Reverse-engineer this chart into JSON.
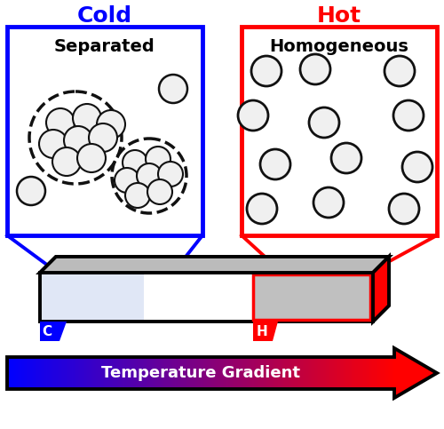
{
  "cold_label": "Cold",
  "hot_label": "Hot",
  "separated_label": "Separated",
  "homogeneous_label": "Homogeneous",
  "gradient_label": "Temperature Gradient",
  "cold_color": "#0000FF",
  "hot_color": "#FF0000",
  "box_bg": "#FFFFFF",
  "fig_bg": "#FFFFFF",
  "c_label": "C",
  "h_label": "H",
  "device_top_color": "#AAAAAA",
  "device_right_color": "#888888",
  "device_front_color": "#FFFFFF",
  "cold_tint_color": "#C8D8F8",
  "hot_region_color": "#C8C8C8",
  "sphere_fc": "#F0F0F0",
  "sphere_ec": "#111111",
  "cluster_ec": "#111111",
  "arrow_outline": "#000000"
}
